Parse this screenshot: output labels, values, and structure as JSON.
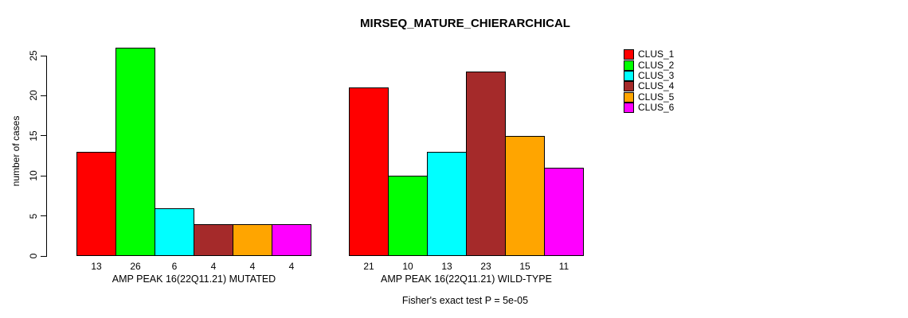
{
  "title": "MIRSEQ_MATURE_CHIERARCHICAL",
  "footer": "Fisher's exact test P = 5e-05",
  "y_axis": {
    "label": "number of cases",
    "ticks": [
      0,
      5,
      10,
      15,
      20,
      25
    ]
  },
  "chart_data": {
    "type": "bar",
    "title": "MIRSEQ_MATURE_CHIERARCHICAL",
    "ylabel": "number of cases",
    "xlabel": "",
    "ylim": [
      0,
      26
    ],
    "yticks": [
      0,
      5,
      10,
      15,
      20,
      25
    ],
    "grid": false,
    "legend_position": "right",
    "series_names": [
      "CLUS_1",
      "CLUS_2",
      "CLUS_3",
      "CLUS_4",
      "CLUS_5",
      "CLUS_6"
    ],
    "series_colors": [
      "#FF0000",
      "#00FF00",
      "#00FFFF",
      "#A52A2A",
      "#FFA500",
      "#FF00FF"
    ],
    "groups": [
      {
        "label": "AMP PEAK 16(22Q11.21) MUTATED",
        "values": [
          13,
          26,
          6,
          4,
          4,
          4
        ]
      },
      {
        "label": "AMP PEAK 16(22Q11.21) WILD-TYPE",
        "values": [
          21,
          10,
          13,
          23,
          15,
          11
        ]
      }
    ],
    "annotation": "Fisher's exact test P = 5e-05"
  }
}
